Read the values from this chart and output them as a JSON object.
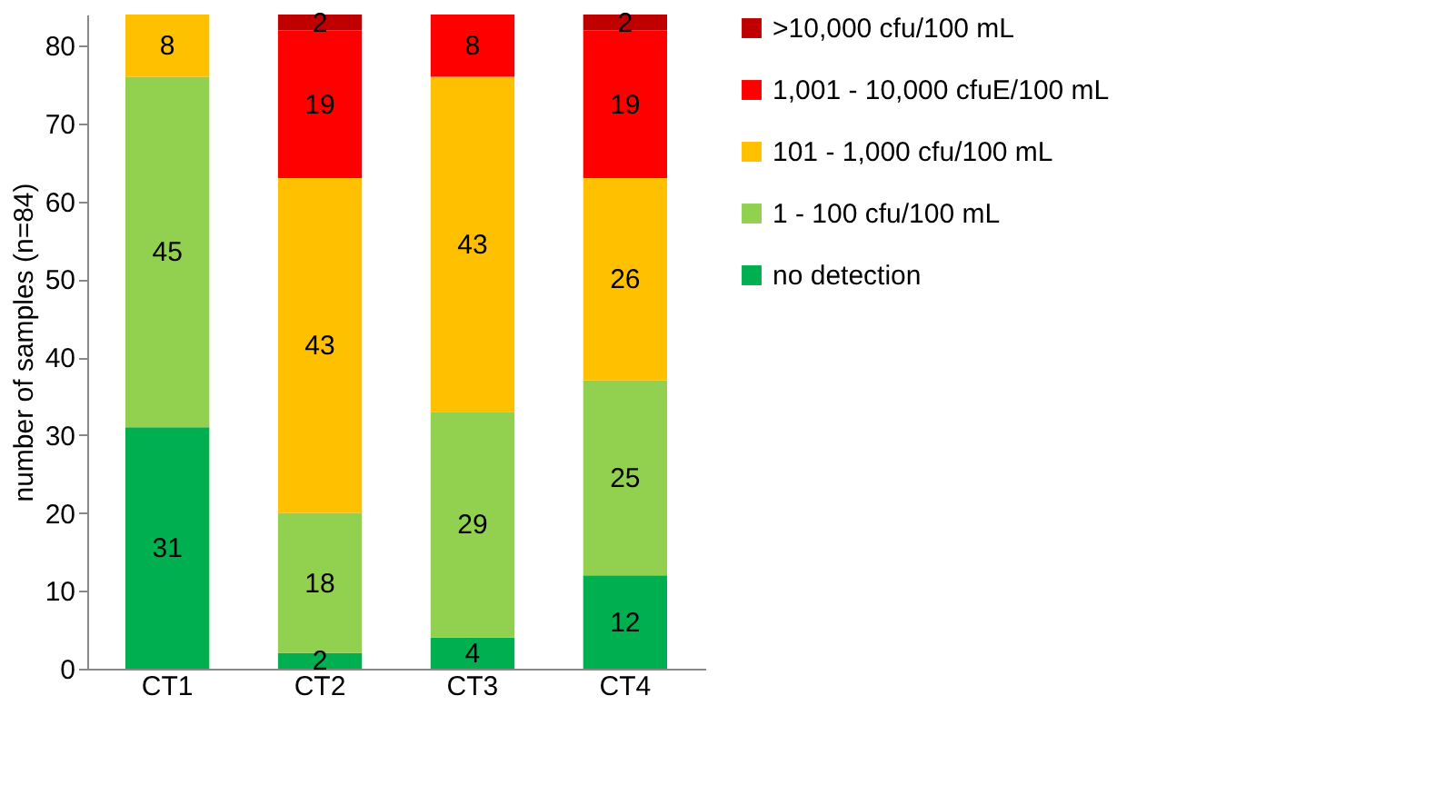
{
  "chart_data": {
    "type": "bar",
    "stacked": true,
    "ylabel": "number of samples (n=84)",
    "categories": [
      "CT1",
      "CT2",
      "CT3",
      "CT4"
    ],
    "series": [
      {
        "name": "no detection",
        "color": "#00b050",
        "values": [
          31,
          2,
          4,
          12
        ]
      },
      {
        "name": "1 - 100 cfu/100 mL",
        "color": "#92d050",
        "values": [
          45,
          18,
          29,
          25
        ]
      },
      {
        "name": "101 - 1,000 cfu/100 mL",
        "color": "#ffc000",
        "values": [
          8,
          43,
          43,
          26
        ]
      },
      {
        "name": "1,001 - 10,000 cfuE/100 mL",
        "color": "#ff0000",
        "values": [
          null,
          19,
          8,
          19
        ]
      },
      {
        "name": ">10,000 cfu/100 mL",
        "color": "#c00000",
        "values": [
          null,
          2,
          null,
          2
        ]
      }
    ],
    "ylim": [
      0,
      84
    ],
    "yticks": [
      0,
      10,
      20,
      30,
      40,
      50,
      60,
      70,
      80
    ],
    "grid": false,
    "legend": "right",
    "data_labels": true
  }
}
